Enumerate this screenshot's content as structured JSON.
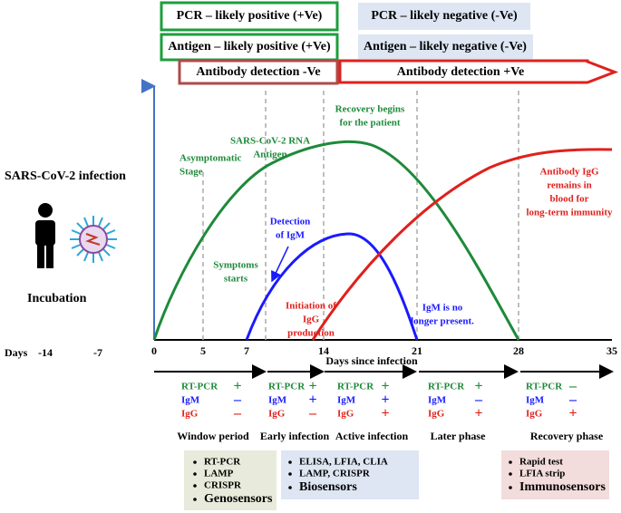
{
  "top_boxes": {
    "pcr_positive": "PCR – likely positive (+Ve)",
    "pcr_negative": "PCR – likely negative (-Ve)",
    "antigen_positive": "Antigen – likely positive (+Ve)",
    "antigen_negative": "Antigen – likely negative (-Ve)",
    "antibody_negative": "Antibody detection  -Ve",
    "antibody_positive": "Antibody detection  +Ve"
  },
  "left": {
    "infection": "SARS-CoV-2 infection",
    "incubation": "Incubation",
    "days": "Days",
    "pre_ticks": [
      "-14",
      "-7"
    ]
  },
  "axis": {
    "ticks": [
      "0",
      "5",
      "7",
      "14",
      "21",
      "28",
      "35"
    ],
    "label": "Days since infection"
  },
  "annotations": [
    {
      "lines": [
        "Asymptomatic",
        "Stage"
      ]
    },
    {
      "lines": [
        "SARS-CoV-2 RNA",
        "Antigen"
      ]
    },
    {
      "lines": [
        "Recovery begins",
        "for the patient"
      ]
    },
    {
      "lines": [
        "Symptoms",
        "starts"
      ]
    },
    {
      "lines": [
        "Detection",
        "of IgM"
      ]
    },
    {
      "lines": [
        "Initiation of",
        "IgG",
        "production"
      ]
    },
    {
      "lines": [
        "IgM is no",
        "longer present."
      ]
    },
    {
      "lines": [
        "Antibody IgG",
        "remains in",
        "blood for",
        "long-term immunity"
      ]
    }
  ],
  "phases": [
    {
      "label": "Window period",
      "tests": [
        [
          "RT-PCR",
          "+"
        ],
        [
          "IgM",
          "–"
        ],
        [
          "IgG",
          "–"
        ]
      ]
    },
    {
      "label": "Early infection",
      "tests": [
        [
          "RT-PCR",
          "+"
        ],
        [
          "IgM",
          "+"
        ],
        [
          "IgG",
          "–"
        ]
      ]
    },
    {
      "label": "Active infection",
      "tests": [
        [
          "RT-PCR",
          "+"
        ],
        [
          "IgM",
          "+"
        ],
        [
          "IgG",
          "+"
        ]
      ]
    },
    {
      "label": "Later phase",
      "tests": [
        [
          "RT-PCR",
          "+"
        ],
        [
          "IgM",
          "–"
        ],
        [
          "IgG",
          "+"
        ]
      ]
    },
    {
      "label": "Recovery phase",
      "tests": [
        [
          "RT-PCR",
          "–"
        ],
        [
          "IgM",
          "–"
        ],
        [
          "IgG",
          "+"
        ]
      ]
    }
  ],
  "methods": [
    {
      "items": [
        "RT-PCR",
        "LAMP",
        "CRISPR"
      ],
      "sensor": "Genosensors"
    },
    {
      "items": [
        "ELISA, LFIA, CLIA",
        "LAMP, CRISPR"
      ],
      "sensor": "Biosensors"
    },
    {
      "items": [
        "Rapid test",
        "LFIA strip"
      ],
      "sensor": "Immunosensors"
    }
  ]
}
